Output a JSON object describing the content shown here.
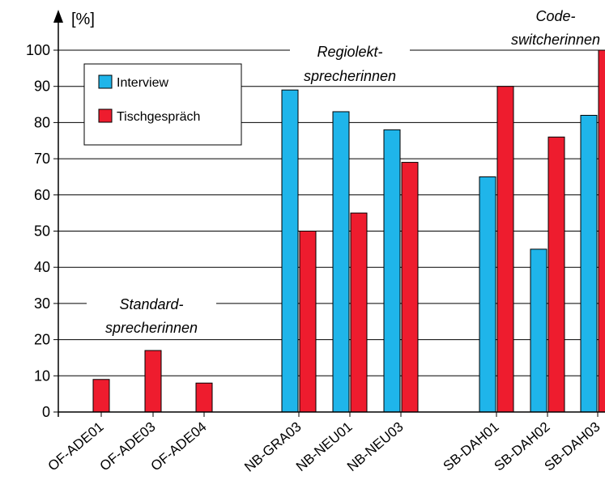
{
  "chart_data": {
    "type": "bar",
    "ylabel": "[%]",
    "ylim": [
      0,
      100
    ],
    "yticks": [
      "0",
      "10",
      "20",
      "30",
      "40",
      "50",
      "60",
      "70",
      "80",
      "90",
      "100"
    ],
    "grid": "horizontal",
    "legend_position": "top-left",
    "categories": [
      "OF-ADE01",
      "OF-ADE03",
      "OF-ADE04",
      "NB-GRA03",
      "NB-NEU01",
      "NB-NEU03",
      "SB-DAH01",
      "SB-DAH02",
      "SB-DAH03"
    ],
    "series": [
      {
        "name": "Interview",
        "color": "#1FB5EA",
        "values": [
          null,
          null,
          null,
          89,
          83,
          78,
          65,
          45,
          82
        ]
      },
      {
        "name": "Tischgespräch",
        "color": "#EE1C2E",
        "values": [
          9,
          17,
          8,
          50,
          55,
          69,
          90,
          76,
          100
        ]
      }
    ],
    "groups": [
      {
        "line1": "Standard-",
        "line2": "sprecherinnen"
      },
      {
        "line1": "Regiolekt-",
        "line2": "sprecherinnen"
      },
      {
        "line1": "Code-",
        "line2": "switcherinnen"
      }
    ]
  }
}
